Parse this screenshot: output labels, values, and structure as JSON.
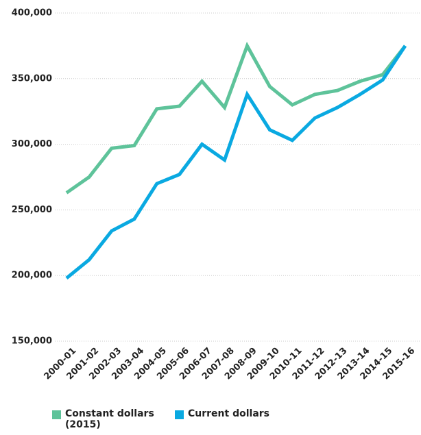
{
  "chart_data": {
    "type": "line",
    "categories": [
      "2000-01",
      "2001-02",
      "2002-03",
      "2003-04",
      "2004-05",
      "2005-06",
      "2006-07",
      "2007-08",
      "2008-09",
      "2009-10",
      "2010-11",
      "2011-12",
      "2012-13",
      "2013-14",
      "2014-15",
      "2015-16"
    ],
    "series": [
      {
        "name": "Constant dollars (2015)",
        "color": "#5ec39a",
        "values": [
          263000,
          275000,
          297000,
          299000,
          327000,
          329000,
          348000,
          328000,
          375000,
          344000,
          330000,
          338000,
          341000,
          348000,
          353000,
          375000
        ]
      },
      {
        "name": "Current dollars",
        "color": "#0aa9e1",
        "values": [
          198000,
          212000,
          234000,
          243000,
          270000,
          277000,
          300000,
          288000,
          338000,
          311000,
          303000,
          320000,
          328000,
          338000,
          349000,
          375000
        ]
      }
    ],
    "ylim": [
      150000,
      400000
    ],
    "yticks": [
      {
        "value": 150000,
        "label": "150,000"
      },
      {
        "value": 200000,
        "label": "200,000"
      },
      {
        "value": 250000,
        "label": "250,000"
      },
      {
        "value": 300000,
        "label": "300,000"
      },
      {
        "value": 350000,
        "label": "350,000"
      },
      {
        "value": 400000,
        "label": "400,000"
      }
    ],
    "grid": true,
    "legend": "bottom"
  }
}
